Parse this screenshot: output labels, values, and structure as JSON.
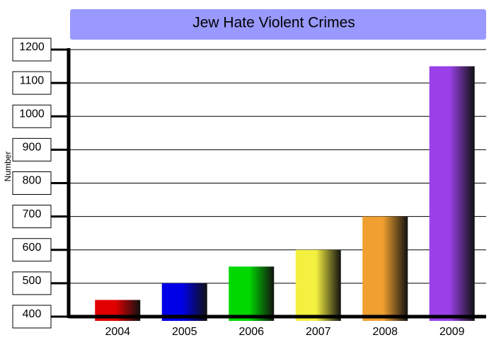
{
  "chart_data": {
    "type": "bar",
    "title": "Jew Hate Violent Crimes",
    "y_label": "Number",
    "categories": [
      "2004",
      "2005",
      "2006",
      "2007",
      "2008",
      "2009"
    ],
    "values": [
      450,
      500,
      550,
      600,
      700,
      1150
    ],
    "colors": [
      "#e00000",
      "#0000e6",
      "#00d800",
      "#f4f040",
      "#f0a030",
      "#9a40e8"
    ],
    "ylim": [
      400,
      1200
    ],
    "yticks": [
      400,
      500,
      600,
      700,
      800,
      900,
      1000,
      1100,
      1200
    ],
    "grid": true
  }
}
